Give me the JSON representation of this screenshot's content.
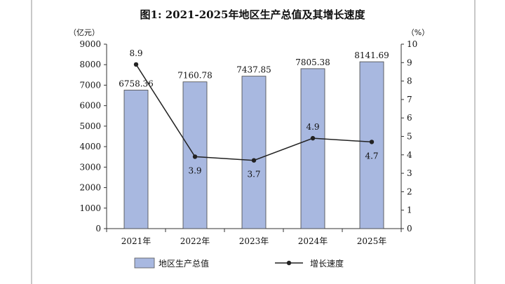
{
  "chart_data": {
    "type": "bar+line",
    "title": "图1: 2021-2025年地区生产总值及其增长速度",
    "left_unit": "（亿元）",
    "right_unit": "（%）",
    "categories": [
      "2021年",
      "2022年",
      "2023年",
      "2024年",
      "2025年"
    ],
    "series": [
      {
        "name": "地区生产总值",
        "kind": "bar",
        "axis": "left",
        "values": [
          6758.36,
          7160.78,
          7437.85,
          7805.38,
          8141.69
        ],
        "labels": [
          "6758.36",
          "7160.78",
          "7437.85",
          "7805.38",
          "8141.69"
        ],
        "color": "#a8b8e0"
      },
      {
        "name": "增长速度",
        "kind": "line",
        "axis": "right",
        "values": [
          8.9,
          3.9,
          3.7,
          4.9,
          4.7
        ],
        "labels": [
          "8.9",
          "3.9",
          "3.7",
          "4.9",
          "4.7"
        ],
        "color": "#222222"
      }
    ],
    "left_ticks": [
      "0",
      "1000",
      "2000",
      "3000",
      "4000",
      "5000",
      "6000",
      "7000",
      "8000",
      "9000"
    ],
    "right_ticks": [
      "0",
      "1",
      "2",
      "3",
      "4",
      "5",
      "6",
      "7",
      "8",
      "9",
      "10"
    ],
    "ylim_left": [
      0,
      9000
    ],
    "ylim_right": [
      0,
      10
    ],
    "grid": false,
    "legend_position": "bottom"
  }
}
